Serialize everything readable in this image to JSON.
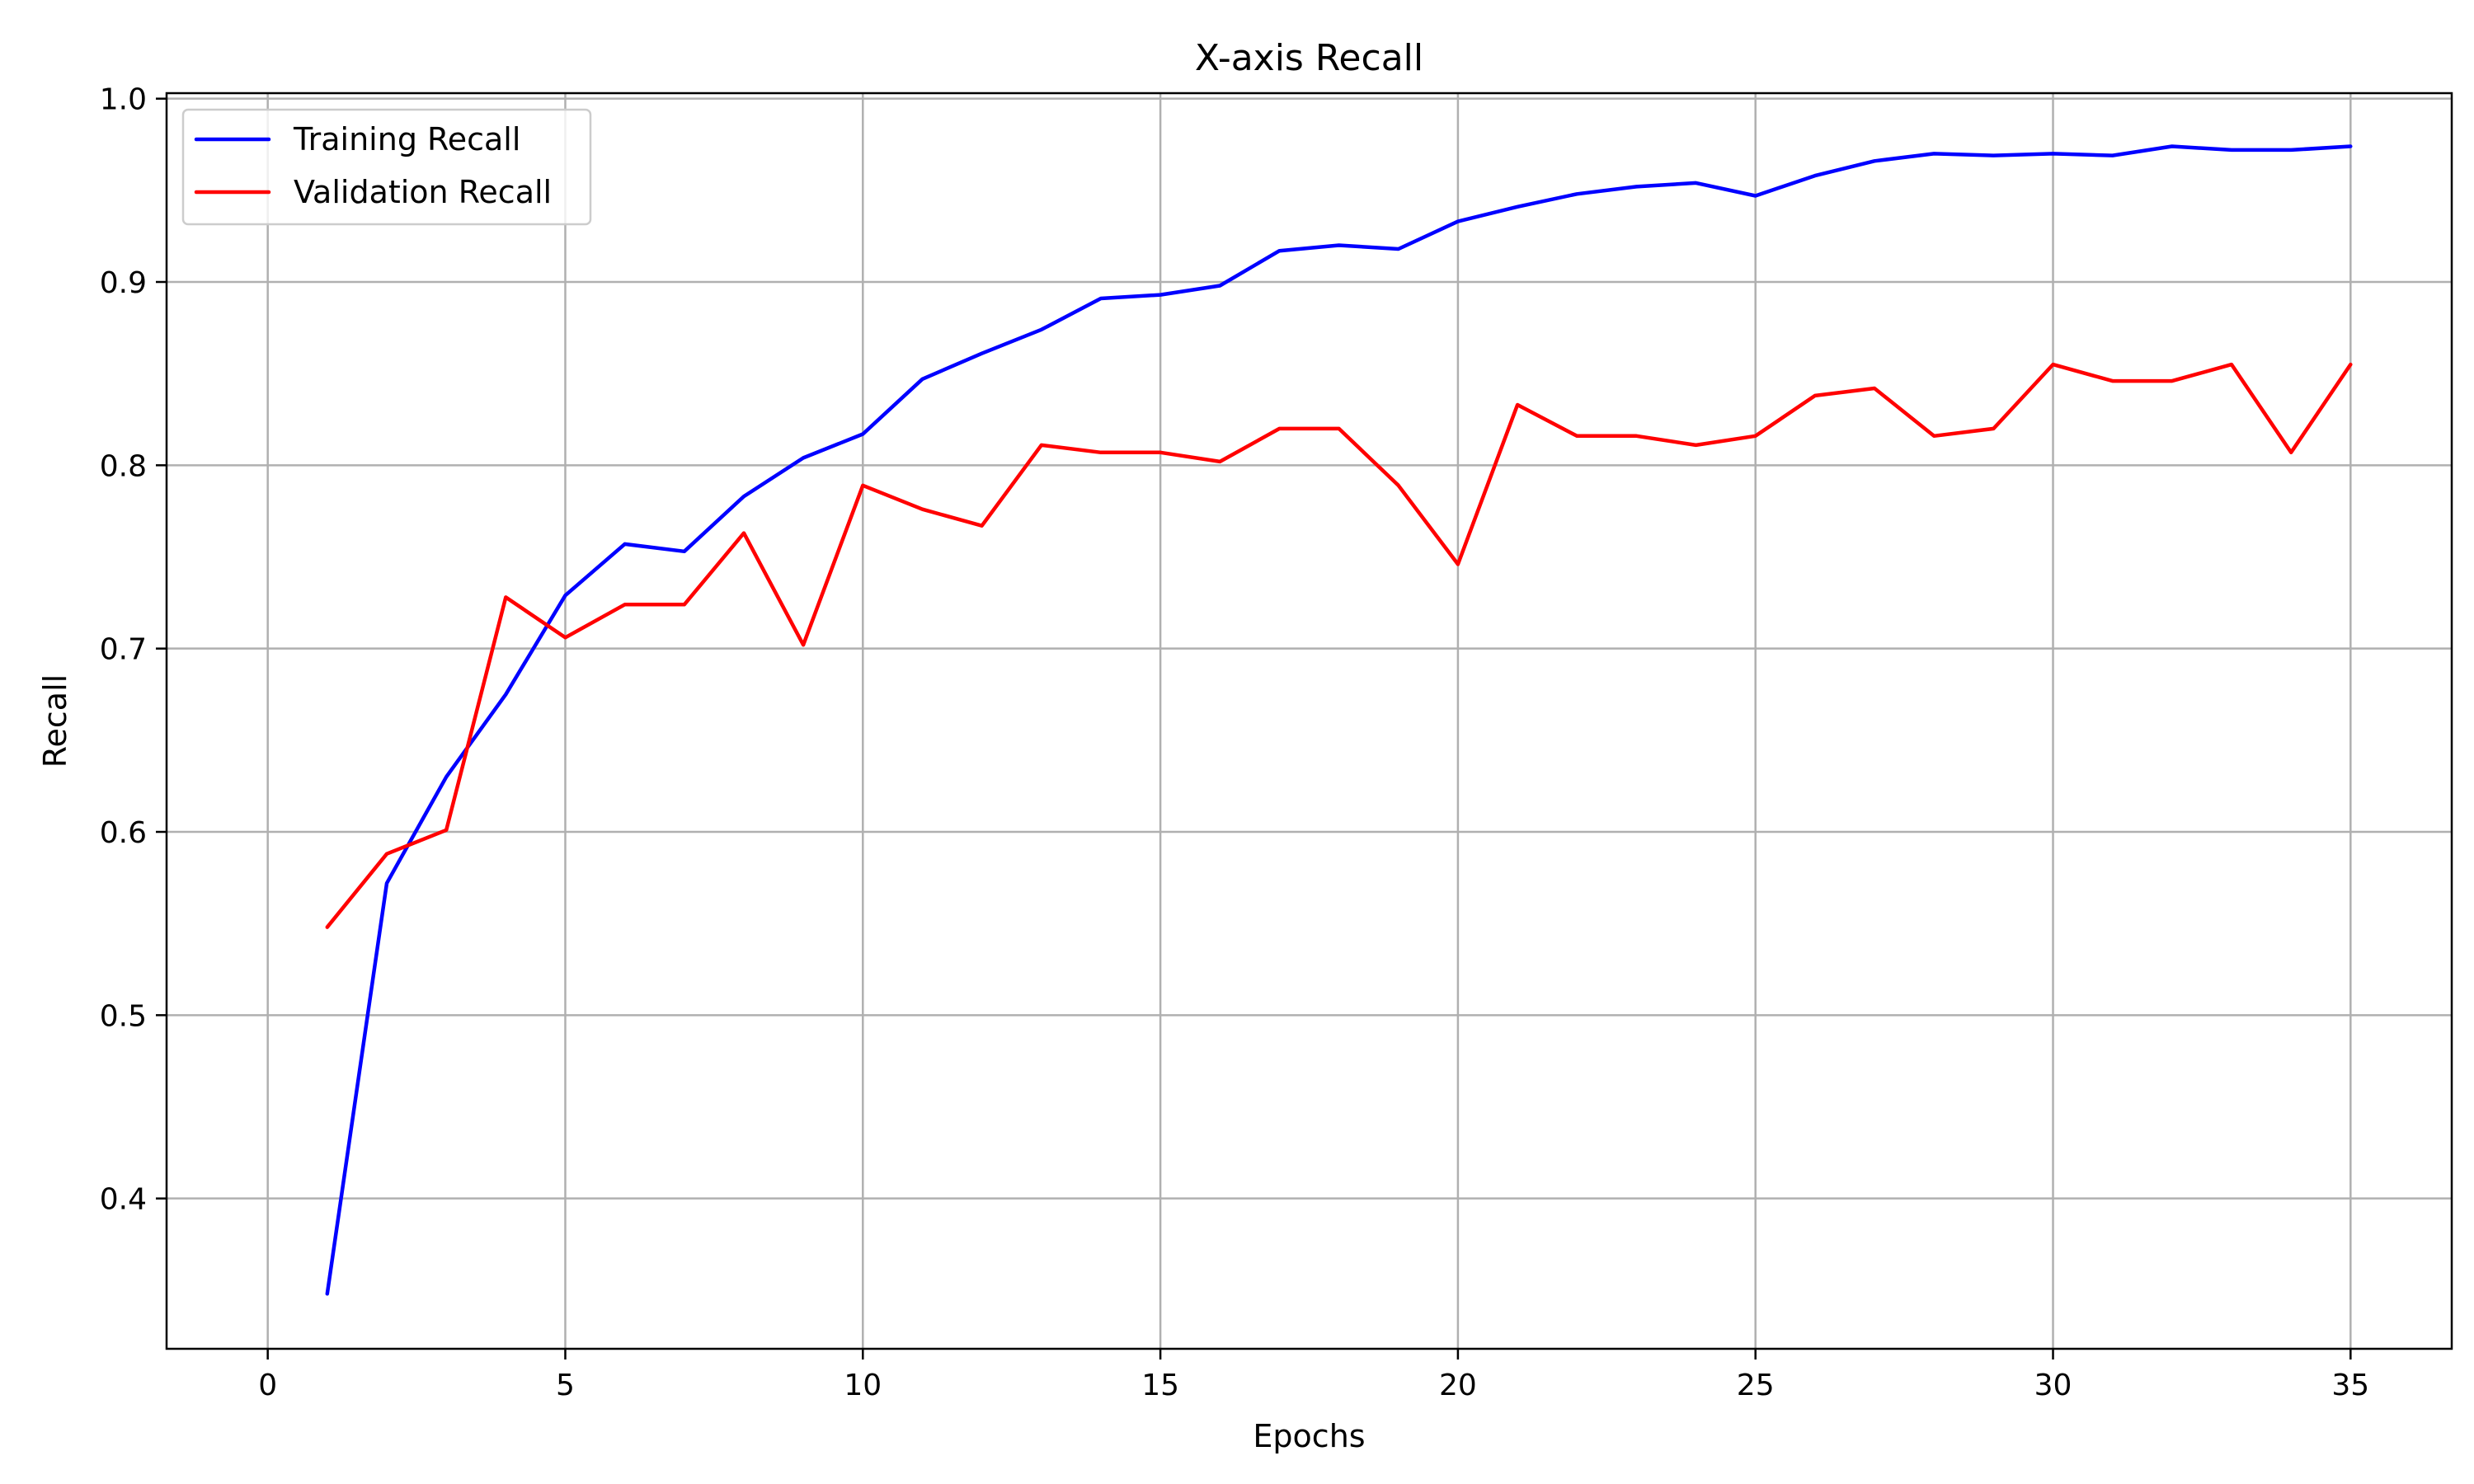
{
  "chart_data": {
    "type": "line",
    "title": "X-axis Recall",
    "xlabel": "Epochs",
    "ylabel": "Recall",
    "xlim": [
      -1.7,
      36.7
    ],
    "ylim": [
      0.318,
      1.003
    ],
    "xticks": [
      0,
      5,
      10,
      15,
      20,
      25,
      30,
      35
    ],
    "yticks": [
      0.4,
      0.5,
      0.6,
      0.7,
      0.8,
      0.9,
      1.0
    ],
    "ytick_labels": [
      "0.4",
      "0.5",
      "0.6",
      "0.7",
      "0.8",
      "0.9",
      "1.0"
    ],
    "grid": true,
    "legend_position": "top-left",
    "x": [
      1,
      2,
      3,
      4,
      5,
      6,
      7,
      8,
      9,
      10,
      11,
      12,
      13,
      14,
      15,
      16,
      17,
      18,
      19,
      20,
      21,
      22,
      23,
      24,
      25,
      26,
      27,
      28,
      29,
      30,
      31,
      32,
      33,
      34,
      35
    ],
    "series": [
      {
        "name": "Training Recall",
        "color": "#0000ff",
        "values": [
          0.348,
          0.572,
          0.63,
          0.675,
          0.729,
          0.757,
          0.753,
          0.783,
          0.804,
          0.817,
          0.847,
          0.861,
          0.874,
          0.891,
          0.893,
          0.898,
          0.917,
          0.92,
          0.918,
          0.933,
          0.941,
          0.948,
          0.952,
          0.954,
          0.947,
          0.958,
          0.966,
          0.97,
          0.969,
          0.97,
          0.969,
          0.974,
          0.972,
          0.972,
          0.974
        ]
      },
      {
        "name": "Validation Recall",
        "color": "#ff0000",
        "values": [
          0.548,
          0.588,
          0.601,
          0.728,
          0.706,
          0.724,
          0.724,
          0.763,
          0.702,
          0.789,
          0.776,
          0.767,
          0.811,
          0.807,
          0.807,
          0.802,
          0.82,
          0.82,
          0.789,
          0.746,
          0.833,
          0.816,
          0.816,
          0.811,
          0.816,
          0.838,
          0.842,
          0.816,
          0.82,
          0.855,
          0.846,
          0.846,
          0.855,
          0.807,
          0.855
        ]
      }
    ]
  }
}
